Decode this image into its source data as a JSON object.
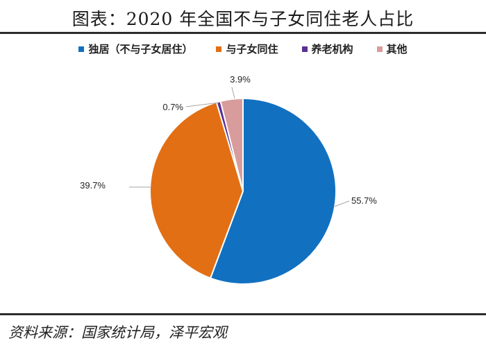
{
  "title": "图表：2020 年全国不与子女同住老人占比",
  "source": "资料来源：国家统计局，泽平宏观",
  "chart_data": {
    "type": "pie",
    "legend_position": "top",
    "slices": [
      {
        "label": "独居（不与子女居住）",
        "value": 55.7,
        "display": "55.7%",
        "color": "#1270c0"
      },
      {
        "label": "与子女同住",
        "value": 39.7,
        "display": "39.7%",
        "color": "#e26f14"
      },
      {
        "label": "养老机构",
        "value": 0.7,
        "display": "0.7%",
        "color": "#5a2f93"
      },
      {
        "label": "其他",
        "value": 3.9,
        "display": "3.9%",
        "color": "#d99c9c"
      }
    ]
  }
}
